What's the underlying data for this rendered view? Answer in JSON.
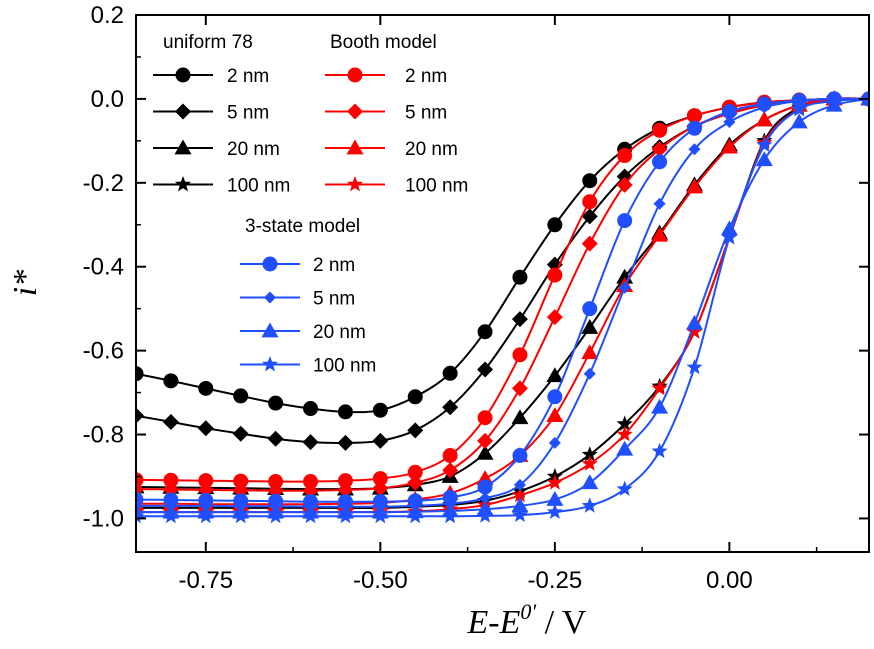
{
  "chart_data": {
    "type": "line",
    "title": "",
    "ylabel": "i*",
    "xlabel": {
      "main": "E-E",
      "superscript": "0'",
      "suffix": " / V"
    },
    "xlim": [
      -0.85,
      0.2
    ],
    "ylim": [
      -1.08,
      0.2
    ],
    "x_ticks": [
      -0.75,
      -0.5,
      -0.25,
      0.0
    ],
    "x_tick_labels": [
      "-0.75",
      "-0.50",
      "-0.25",
      "0.00"
    ],
    "y_ticks": [
      0.2,
      0.0,
      -0.2,
      -0.4,
      -0.6,
      -0.8,
      -1.0
    ],
    "y_tick_labels": [
      "0.2",
      "0.0",
      "-0.2",
      "-0.4",
      "-0.6",
      "-0.8",
      "-1.0"
    ],
    "legend_groups": [
      {
        "title": "uniform 78",
        "position": "top-left"
      },
      {
        "title": "Booth model",
        "position": "top-center"
      },
      {
        "title": "3-state model",
        "position": "middle-left"
      }
    ],
    "series": [
      {
        "group": "uniform 78",
        "name": "2 nm",
        "color": "#000000",
        "marker": "circle",
        "x": [
          -0.85,
          -0.8,
          -0.75,
          -0.7,
          -0.65,
          -0.6,
          -0.55,
          -0.5,
          -0.45,
          -0.4,
          -0.35,
          -0.3,
          -0.25,
          -0.2,
          -0.15,
          -0.1,
          -0.05,
          0.0,
          0.05,
          0.1,
          0.15,
          0.2
        ],
        "y": [
          -0.655,
          -0.672,
          -0.69,
          -0.708,
          -0.725,
          -0.738,
          -0.746,
          -0.742,
          -0.71,
          -0.654,
          -0.555,
          -0.425,
          -0.3,
          -0.195,
          -0.12,
          -0.07,
          -0.04,
          -0.02,
          -0.008,
          -0.003,
          0.0,
          0.0
        ]
      },
      {
        "group": "uniform 78",
        "name": "5 nm",
        "color": "#000000",
        "marker": "diamond",
        "x": [
          -0.85,
          -0.8,
          -0.75,
          -0.7,
          -0.65,
          -0.6,
          -0.55,
          -0.5,
          -0.45,
          -0.4,
          -0.35,
          -0.3,
          -0.25,
          -0.2,
          -0.15,
          -0.1,
          -0.05,
          0.0,
          0.05,
          0.1,
          0.15,
          0.2
        ],
        "y": [
          -0.755,
          -0.77,
          -0.785,
          -0.798,
          -0.81,
          -0.818,
          -0.82,
          -0.815,
          -0.79,
          -0.735,
          -0.645,
          -0.525,
          -0.395,
          -0.28,
          -0.185,
          -0.115,
          -0.065,
          -0.035,
          -0.015,
          -0.005,
          0.0,
          0.0
        ]
      },
      {
        "group": "uniform 78",
        "name": "20 nm",
        "color": "#000000",
        "marker": "triangle",
        "x": [
          -0.85,
          -0.8,
          -0.75,
          -0.7,
          -0.65,
          -0.6,
          -0.55,
          -0.5,
          -0.45,
          -0.4,
          -0.35,
          -0.3,
          -0.25,
          -0.2,
          -0.15,
          -0.1,
          -0.05,
          0.0,
          0.05,
          0.1,
          0.15,
          0.2
        ],
        "y": [
          -0.925,
          -0.926,
          -0.927,
          -0.928,
          -0.929,
          -0.93,
          -0.93,
          -0.928,
          -0.92,
          -0.9,
          -0.845,
          -0.76,
          -0.66,
          -0.545,
          -0.425,
          -0.32,
          -0.205,
          -0.11,
          -0.05,
          -0.015,
          0.0,
          0.0
        ]
      },
      {
        "group": "uniform 78",
        "name": "100 nm",
        "color": "#000000",
        "marker": "star",
        "x": [
          -0.85,
          -0.8,
          -0.75,
          -0.7,
          -0.65,
          -0.6,
          -0.55,
          -0.5,
          -0.45,
          -0.4,
          -0.35,
          -0.3,
          -0.25,
          -0.2,
          -0.15,
          -0.1,
          -0.05,
          0.0,
          0.05,
          0.1,
          0.15,
          0.2
        ],
        "y": [
          -0.975,
          -0.975,
          -0.975,
          -0.975,
          -0.975,
          -0.975,
          -0.975,
          -0.975,
          -0.972,
          -0.968,
          -0.958,
          -0.935,
          -0.9,
          -0.848,
          -0.775,
          -0.685,
          -0.555,
          -0.33,
          -0.1,
          -0.02,
          0.0,
          0.0
        ]
      },
      {
        "group": "Booth model",
        "name": "2 nm",
        "color": "#ff0000",
        "marker": "circle",
        "x": [
          -0.85,
          -0.8,
          -0.75,
          -0.7,
          -0.65,
          -0.6,
          -0.55,
          -0.5,
          -0.45,
          -0.4,
          -0.35,
          -0.3,
          -0.25,
          -0.2,
          -0.15,
          -0.1,
          -0.05,
          0.0,
          0.05,
          0.1,
          0.15,
          0.2
        ],
        "y": [
          -0.908,
          -0.909,
          -0.91,
          -0.911,
          -0.912,
          -0.912,
          -0.91,
          -0.905,
          -0.89,
          -0.85,
          -0.76,
          -0.61,
          -0.42,
          -0.245,
          -0.135,
          -0.075,
          -0.04,
          -0.02,
          -0.008,
          -0.003,
          0.0,
          0.0
        ]
      },
      {
        "group": "Booth model",
        "name": "5 nm",
        "color": "#ff0000",
        "marker": "diamond",
        "x": [
          -0.85,
          -0.8,
          -0.75,
          -0.7,
          -0.65,
          -0.6,
          -0.55,
          -0.5,
          -0.45,
          -0.4,
          -0.35,
          -0.3,
          -0.25,
          -0.2,
          -0.15,
          -0.1,
          -0.05,
          0.0,
          0.05,
          0.1,
          0.15,
          0.2
        ],
        "y": [
          -0.93,
          -0.931,
          -0.932,
          -0.933,
          -0.934,
          -0.934,
          -0.932,
          -0.928,
          -0.915,
          -0.885,
          -0.815,
          -0.69,
          -0.52,
          -0.345,
          -0.205,
          -0.12,
          -0.065,
          -0.035,
          -0.015,
          -0.005,
          0.0,
          0.0
        ]
      },
      {
        "group": "Booth model",
        "name": "20 nm",
        "color": "#ff0000",
        "marker": "triangle",
        "x": [
          -0.85,
          -0.8,
          -0.75,
          -0.7,
          -0.65,
          -0.6,
          -0.55,
          -0.5,
          -0.45,
          -0.4,
          -0.35,
          -0.3,
          -0.25,
          -0.2,
          -0.15,
          -0.1,
          -0.05,
          0.0,
          0.05,
          0.1,
          0.15,
          0.2
        ],
        "y": [
          -0.965,
          -0.965,
          -0.966,
          -0.966,
          -0.966,
          -0.966,
          -0.965,
          -0.963,
          -0.955,
          -0.94,
          -0.905,
          -0.85,
          -0.755,
          -0.605,
          -0.445,
          -0.325,
          -0.21,
          -0.115,
          -0.05,
          -0.015,
          0.0,
          0.0
        ]
      },
      {
        "group": "Booth model",
        "name": "100 nm",
        "color": "#ff0000",
        "marker": "star",
        "x": [
          -0.85,
          -0.8,
          -0.75,
          -0.7,
          -0.65,
          -0.6,
          -0.55,
          -0.5,
          -0.45,
          -0.4,
          -0.35,
          -0.3,
          -0.25,
          -0.2,
          -0.15,
          -0.1,
          -0.05,
          0.0,
          0.05,
          0.1,
          0.15,
          0.2
        ],
        "y": [
          -0.985,
          -0.985,
          -0.985,
          -0.985,
          -0.985,
          -0.985,
          -0.985,
          -0.985,
          -0.983,
          -0.978,
          -0.968,
          -0.945,
          -0.915,
          -0.87,
          -0.8,
          -0.69,
          -0.555,
          -0.33,
          -0.105,
          -0.025,
          0.0,
          0.0
        ]
      },
      {
        "group": "3-state model",
        "name": "2 nm",
        "color": "#1f4fff",
        "marker": "circle",
        "x": [
          -0.85,
          -0.8,
          -0.75,
          -0.7,
          -0.65,
          -0.6,
          -0.55,
          -0.5,
          -0.45,
          -0.4,
          -0.35,
          -0.3,
          -0.25,
          -0.2,
          -0.15,
          -0.1,
          -0.05,
          0.0,
          0.05,
          0.1,
          0.15,
          0.2
        ],
        "y": [
          -0.955,
          -0.956,
          -0.957,
          -0.958,
          -0.959,
          -0.96,
          -0.96,
          -0.96,
          -0.958,
          -0.95,
          -0.925,
          -0.85,
          -0.71,
          -0.5,
          -0.29,
          -0.15,
          -0.07,
          -0.03,
          -0.012,
          -0.004,
          0.0,
          0.0
        ]
      },
      {
        "group": "3-state model",
        "name": "5 nm",
        "color": "#1f4fff",
        "marker": "diamond",
        "x": [
          -0.85,
          -0.8,
          -0.75,
          -0.7,
          -0.65,
          -0.6,
          -0.55,
          -0.5,
          -0.45,
          -0.4,
          -0.35,
          -0.3,
          -0.25,
          -0.2,
          -0.15,
          -0.1,
          -0.05,
          0.0,
          0.05,
          0.1,
          0.15,
          0.2
        ],
        "y": [
          -0.97,
          -0.97,
          -0.97,
          -0.971,
          -0.971,
          -0.972,
          -0.972,
          -0.972,
          -0.97,
          -0.965,
          -0.952,
          -0.92,
          -0.82,
          -0.655,
          -0.45,
          -0.25,
          -0.12,
          -0.055,
          -0.02,
          -0.005,
          0.0,
          0.0
        ]
      },
      {
        "group": "3-state model",
        "name": "20 nm",
        "color": "#1f4fff",
        "marker": "triangle",
        "x": [
          -0.85,
          -0.8,
          -0.75,
          -0.7,
          -0.65,
          -0.6,
          -0.55,
          -0.5,
          -0.45,
          -0.4,
          -0.35,
          -0.3,
          -0.25,
          -0.2,
          -0.15,
          -0.1,
          -0.05,
          0.0,
          0.05,
          0.1,
          0.15,
          0.2
        ],
        "y": [
          -0.985,
          -0.985,
          -0.985,
          -0.985,
          -0.985,
          -0.985,
          -0.985,
          -0.985,
          -0.984,
          -0.982,
          -0.978,
          -0.97,
          -0.955,
          -0.915,
          -0.835,
          -0.735,
          -0.535,
          -0.31,
          -0.145,
          -0.055,
          -0.015,
          0.0
        ]
      },
      {
        "group": "3-state model",
        "name": "100 nm",
        "color": "#1f4fff",
        "marker": "star",
        "x": [
          -0.85,
          -0.8,
          -0.75,
          -0.7,
          -0.65,
          -0.6,
          -0.55,
          -0.5,
          -0.45,
          -0.4,
          -0.35,
          -0.3,
          -0.25,
          -0.2,
          -0.15,
          -0.1,
          -0.05,
          0.0,
          0.05,
          0.1,
          0.15,
          0.2
        ],
        "y": [
          -0.995,
          -0.995,
          -0.995,
          -0.995,
          -0.995,
          -0.995,
          -0.995,
          -0.995,
          -0.995,
          -0.995,
          -0.994,
          -0.992,
          -0.985,
          -0.97,
          -0.93,
          -0.84,
          -0.64,
          -0.33,
          -0.11,
          -0.025,
          -0.005,
          0.0
        ]
      }
    ]
  }
}
